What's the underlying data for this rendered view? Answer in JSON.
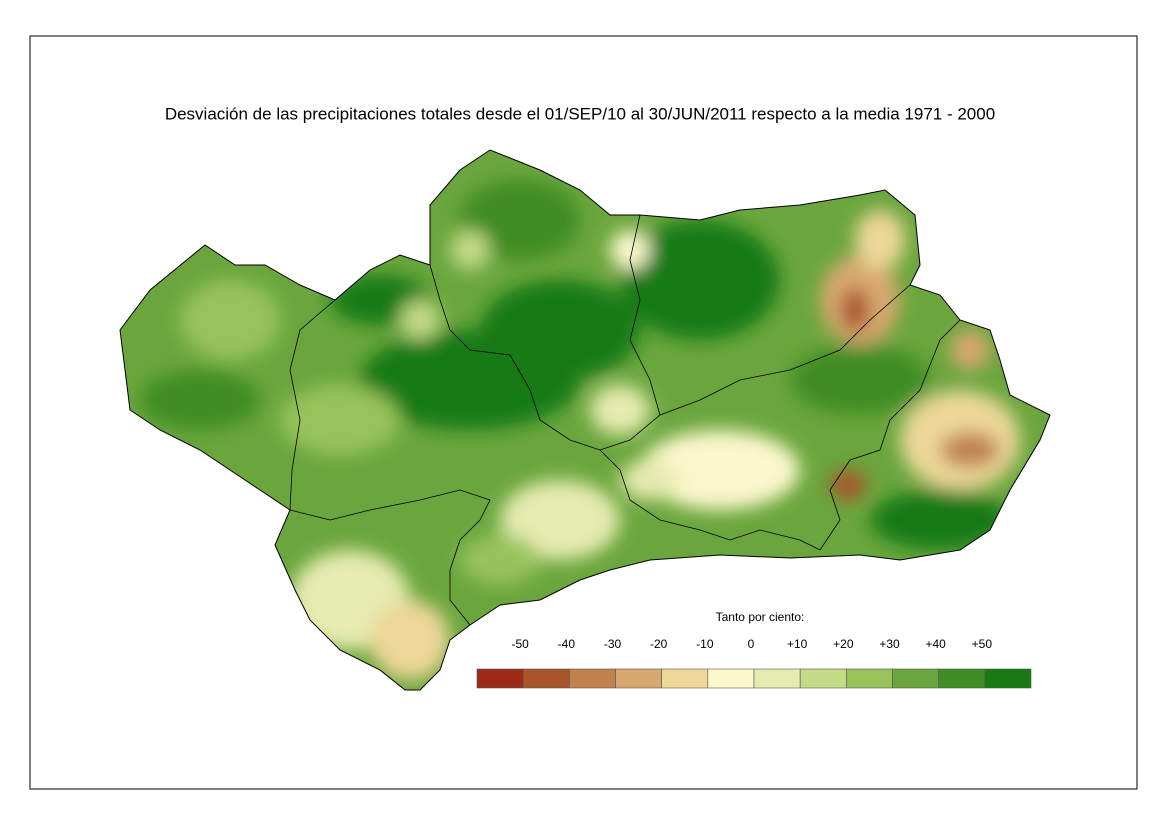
{
  "title": "Desviación de las precipitaciones totales desde el 01/SEP/10 al 30/JUN/2011 respecto a la media 1971 - 2000",
  "legend": {
    "title": "Tanto por ciento:",
    "labels": [
      "-50",
      "-40",
      "-30",
      "-20",
      "-10",
      "0",
      "+10",
      "+20",
      "+30",
      "+40",
      "+50"
    ],
    "colors": [
      "#9c2a17",
      "#a9532b",
      "#c0814f",
      "#d8a870",
      "#edd799",
      "#fbf8cc",
      "#e6ebb0",
      "#c3da86",
      "#98c35b",
      "#6aa63d",
      "#3f8d23",
      "#187a12"
    ]
  }
}
